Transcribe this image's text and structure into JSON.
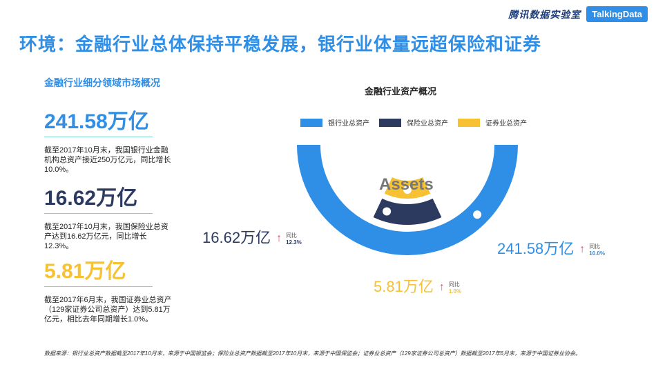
{
  "brand": {
    "cn": "腾讯数据实验室",
    "td": "TalkingData"
  },
  "page_title": "环境：金融行业总体保持平稳发展，银行业体量远超保险和证券",
  "left": {
    "section_title": "金融行业细分领域市场概况",
    "stats": [
      {
        "value": "241.58万亿",
        "color": "#2f8ee6",
        "desc": "截至2017年10月末，我国银行业金融机构总资产接近250万亿元，同比增长10.0%。"
      },
      {
        "value": "16.62万亿",
        "color": "#2b3a5e",
        "desc": "截至2017年10月末，我国保险业总资产达到16.62万亿元，同比增长12.3%。"
      },
      {
        "value": "5.81万亿",
        "color": "#f6c233",
        "desc": "截至2017年6月末，我国证券业总资产（129家证券公司总资产）达到5.81万亿元，相比去年同期增长1.0%。"
      }
    ]
  },
  "footnote": "数据来源：银行业总资产数据截至2017年10月末，来源于中国银监会；保险业总资产数据截至2017年10月末，来源于中国保监会；证券业总资产（129家证券公司总资产）数据截至2017年6月末，来源于中国证券业协会。",
  "center_label": "Assets",
  "yoy_label": "同比",
  "chart_data": {
    "type": "radial-bar",
    "title": "金融行业资产概况",
    "unit": "万亿",
    "series": [
      {
        "name": "银行业总资产",
        "value": 241.58,
        "label": "241.58万亿",
        "yoy": "10.0%",
        "color": "#2f8ee6"
      },
      {
        "name": "保险业总资产",
        "value": 16.62,
        "label": "16.62万亿",
        "yoy": "12.3%",
        "color": "#2b3a5e"
      },
      {
        "name": "证券业总资产",
        "value": 5.81,
        "label": "5.81万亿",
        "yoy": "1.0%",
        "color": "#f6c233"
      }
    ]
  }
}
